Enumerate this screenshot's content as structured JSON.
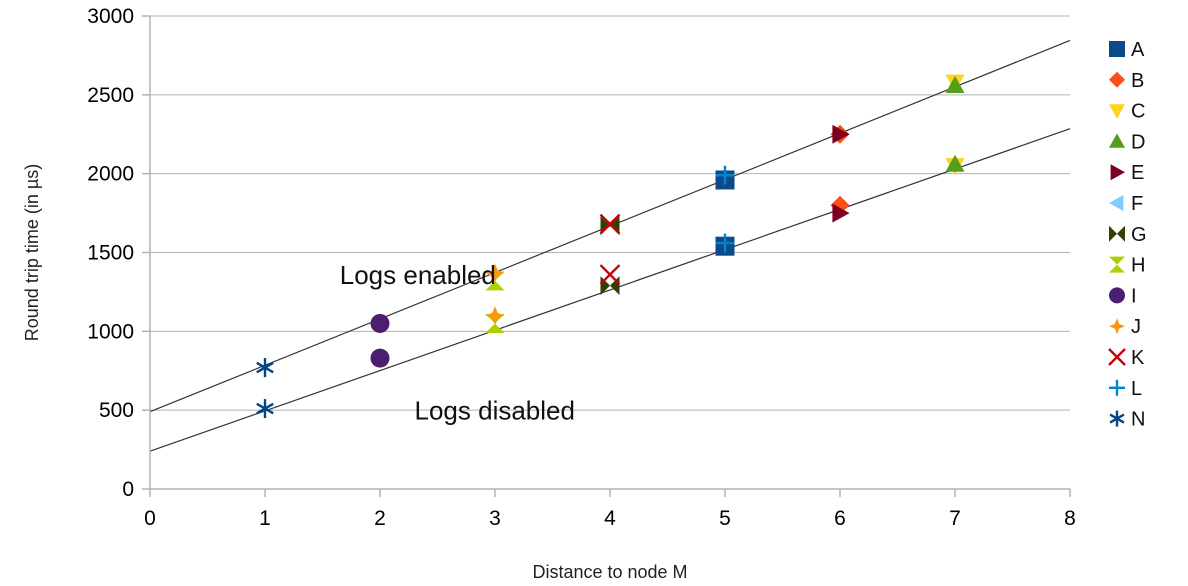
{
  "chart_data": {
    "type": "scatter",
    "title": "",
    "xlabel": "Distance to node M",
    "ylabel": "Round trip time (in µs)",
    "xlim": [
      0,
      8
    ],
    "ylim": [
      0,
      3000
    ],
    "x_ticks": [
      "0",
      "1",
      "2",
      "3",
      "4",
      "5",
      "6",
      "7",
      "8"
    ],
    "y_ticks": [
      "0",
      "500",
      "1000",
      "1500",
      "2000",
      "2500",
      "3000"
    ],
    "grid": "horizontal",
    "legend_position": "right",
    "series": [
      {
        "name": "A",
        "marker": "square",
        "color": "#0d4a87",
        "points": [
          [
            5,
            1960
          ],
          [
            5,
            1540
          ]
        ]
      },
      {
        "name": "B",
        "marker": "diamond",
        "color": "#ff4e1a",
        "points": [
          [
            6,
            2250
          ],
          [
            6,
            1800
          ]
        ]
      },
      {
        "name": "C",
        "marker": "triangle-down",
        "color": "#ffd320",
        "points": [
          [
            7,
            2580
          ],
          [
            7,
            2050
          ]
        ]
      },
      {
        "name": "D",
        "marker": "triangle-up",
        "color": "#579d1c",
        "points": [
          [
            7,
            2560
          ],
          [
            7,
            2060
          ]
        ]
      },
      {
        "name": "E",
        "marker": "triangle-right",
        "color": "#7e0021",
        "points": [
          [
            6,
            2250
          ],
          [
            6,
            1750
          ]
        ]
      },
      {
        "name": "F",
        "marker": "triangle-left",
        "color": "#83caff",
        "points": []
      },
      {
        "name": "G",
        "marker": "bowtie",
        "color": "#314004",
        "points": [
          [
            4,
            1670
          ],
          [
            4,
            1290
          ]
        ]
      },
      {
        "name": "H",
        "marker": "hourglass",
        "color": "#aecf00",
        "points": [
          [
            3,
            1320
          ],
          [
            3,
            1050
          ]
        ]
      },
      {
        "name": "I",
        "marker": "circle",
        "color": "#4b1f6f",
        "points": [
          [
            2,
            1050
          ],
          [
            2,
            830
          ]
        ]
      },
      {
        "name": "J",
        "marker": "star4",
        "color": "#ff950e",
        "points": [
          [
            3,
            1370
          ],
          [
            3,
            1100
          ]
        ]
      },
      {
        "name": "K",
        "marker": "x",
        "color": "#c5000b",
        "points": [
          [
            4,
            1680
          ],
          [
            4,
            1360
          ]
        ]
      },
      {
        "name": "L",
        "marker": "plus",
        "color": "#0084d1",
        "points": [
          [
            5,
            1990
          ],
          [
            5,
            1560
          ]
        ]
      },
      {
        "name": "N",
        "marker": "asterisk",
        "color": "#004586",
        "points": [
          [
            1,
            770
          ],
          [
            1,
            510
          ]
        ]
      }
    ],
    "trendlines": [
      {
        "name": "Logs enabled",
        "x": [
          0,
          8
        ],
        "y": [
          490,
          2845
        ]
      },
      {
        "name": "Logs disabled",
        "x": [
          0,
          8
        ],
        "y": [
          240,
          2285
        ]
      }
    ],
    "annotations": [
      {
        "text": "Logs enabled",
        "x": 1.65,
        "y": 1300
      },
      {
        "text": "Logs disabled",
        "x": 2.3,
        "y": 440
      }
    ]
  }
}
